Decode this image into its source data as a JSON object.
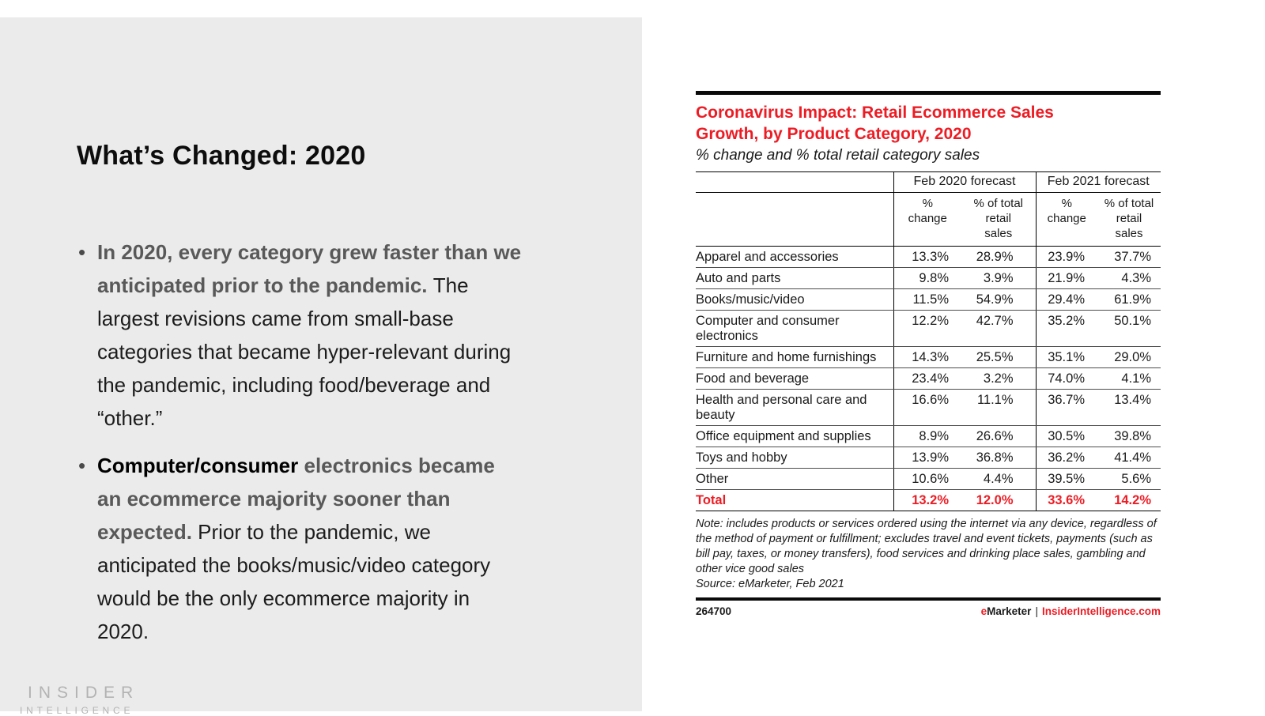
{
  "colors": {
    "accent_red": "#ed1c24",
    "panel_gray": "#ebebeb",
    "text_gray": "#595959",
    "logo_gray": "#b3b3b3"
  },
  "slide": {
    "title": "What’s Changed: 2020",
    "bullets": [
      {
        "segments": [
          {
            "text": "In 2020, every category grew faster than we anticipated prior to the pandemic. ",
            "style": "bold-gray"
          },
          {
            "text": "The largest revisions came from small-base categories that became hyper-relevant during the pandemic, including food/beverage and “other.”",
            "style": "regular"
          }
        ]
      },
      {
        "segments": [
          {
            "text": "Computer/consumer ",
            "style": "bold-black"
          },
          {
            "text": "electronics became an ecommerce majority sooner than expected. ",
            "style": "bold-gray"
          },
          {
            "text": "Prior to the pandemic, we anticipated the books/music/video category would be the only ecommerce majority in 2020.",
            "style": "regular"
          }
        ]
      }
    ],
    "logo": {
      "line1": "INSIDER",
      "line2": "INTELLIGENCE"
    }
  },
  "chart_data": {
    "type": "table",
    "title": "Coronavirus Impact: Retail Ecommerce Sales Growth, by Product Category, 2020",
    "title_lines": [
      "Coronavirus Impact: Retail Ecommerce Sales",
      "Growth, by Product Category, 2020"
    ],
    "subtitle": "% change and % total retail category sales",
    "col_groups": [
      "Feb 2020 forecast",
      "Feb 2021 forecast"
    ],
    "sub_columns": [
      "% change",
      "% of total retail sales"
    ],
    "header": {
      "group_feb2020": "Feb 2020 forecast",
      "group_feb2021": "Feb 2021 forecast",
      "sub_change": "%\nchange",
      "sub_share": "% of total\nretail\nsales"
    },
    "rows": [
      {
        "category": "Apparel and accessories",
        "feb2020_change": "13.3%",
        "feb2020_share": "28.9%",
        "feb2021_change": "23.9%",
        "feb2021_share": "37.7%"
      },
      {
        "category": "Auto and parts",
        "feb2020_change": "9.8%",
        "feb2020_share": "3.9%",
        "feb2021_change": "21.9%",
        "feb2021_share": "4.3%"
      },
      {
        "category": "Books/music/video",
        "feb2020_change": "11.5%",
        "feb2020_share": "54.9%",
        "feb2021_change": "29.4%",
        "feb2021_share": "61.9%"
      },
      {
        "category": "Computer and consumer electronics",
        "feb2020_change": "12.2%",
        "feb2020_share": "42.7%",
        "feb2021_change": "35.2%",
        "feb2021_share": "50.1%"
      },
      {
        "category": "Furniture and home furnishings",
        "feb2020_change": "14.3%",
        "feb2020_share": "25.5%",
        "feb2021_change": "35.1%",
        "feb2021_share": "29.0%"
      },
      {
        "category": "Food and beverage",
        "feb2020_change": "23.4%",
        "feb2020_share": "3.2%",
        "feb2021_change": "74.0%",
        "feb2021_share": "4.1%"
      },
      {
        "category": "Health and personal care and beauty",
        "feb2020_change": "16.6%",
        "feb2020_share": "11.1%",
        "feb2021_change": "36.7%",
        "feb2021_share": "13.4%"
      },
      {
        "category": "Office equipment and supplies",
        "feb2020_change": "8.9%",
        "feb2020_share": "26.6%",
        "feb2021_change": "30.5%",
        "feb2021_share": "39.8%"
      },
      {
        "category": "Toys and hobby",
        "feb2020_change": "13.9%",
        "feb2020_share": "36.8%",
        "feb2021_change": "36.2%",
        "feb2021_share": "41.4%"
      },
      {
        "category": "Other",
        "feb2020_change": "10.6%",
        "feb2020_share": "4.4%",
        "feb2021_change": "39.5%",
        "feb2021_share": "5.6%"
      }
    ],
    "total": {
      "category": "Total",
      "feb2020_change": "13.2%",
      "feb2020_share": "12.0%",
      "feb2021_change": "33.6%",
      "feb2021_share": "14.2%"
    },
    "note": "Note: includes products or services ordered using the internet via any device, regardless of the method of payment or fulfillment; excludes travel and event tickets, payments (such as bill pay, taxes, or money transfers), food services and drinking place sales, gambling and other vice good sales",
    "source": "Source: eMarketer, Feb 2021",
    "chart_id": "264700",
    "brand": {
      "emarketer_e": "e",
      "emarketer_rest": "Marketer",
      "divider": "|",
      "site": "InsiderIntelligence.com"
    }
  }
}
